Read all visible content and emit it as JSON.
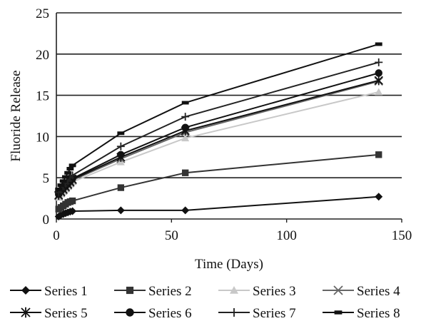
{
  "chart_data": {
    "type": "line",
    "xlabel": "Time (Days)",
    "ylabel": "Fluoride Release",
    "xlim": [
      0,
      150
    ],
    "ylim": [
      0,
      25
    ],
    "xticks": [
      "0",
      "50",
      "100",
      "150"
    ],
    "yticks": [
      "0",
      "5",
      "10",
      "15",
      "20",
      "25"
    ],
    "grid": "horizontal",
    "legend": "bottom",
    "x": [
      1,
      2,
      3,
      4,
      5,
      6,
      7,
      28,
      56,
      140
    ],
    "series": [
      {
        "name": "Series 1",
        "marker": "diamond",
        "color": "#111111",
        "values": [
          0.3,
          0.5,
          0.6,
          0.7,
          0.8,
          0.9,
          0.95,
          1.05,
          1.05,
          2.7
        ]
      },
      {
        "name": "Series 2",
        "marker": "square",
        "color": "#333333",
        "values": [
          1.2,
          1.4,
          1.6,
          1.8,
          2.0,
          2.1,
          2.2,
          3.8,
          5.6,
          7.8
        ]
      },
      {
        "name": "Series 3",
        "marker": "triangle",
        "color": "#c8c8c8",
        "values": [
          2.6,
          3.0,
          3.3,
          3.6,
          3.9,
          4.2,
          4.5,
          6.9,
          9.8,
          15.4
        ]
      },
      {
        "name": "Series 4",
        "marker": "x",
        "color": "#666666",
        "values": [
          2.8,
          3.2,
          3.5,
          3.8,
          4.1,
          4.4,
          4.7,
          7.3,
          10.5,
          16.7
        ]
      },
      {
        "name": "Series 5",
        "marker": "asterisk",
        "color": "#111111",
        "values": [
          2.9,
          3.3,
          3.6,
          3.9,
          4.2,
          4.5,
          4.8,
          7.5,
          10.7,
          16.8
        ]
      },
      {
        "name": "Series 6",
        "marker": "circle",
        "color": "#111111",
        "values": [
          3.0,
          3.4,
          3.7,
          4.0,
          4.3,
          4.6,
          4.9,
          7.8,
          11.1,
          17.7
        ]
      },
      {
        "name": "Series 7",
        "marker": "plus",
        "color": "#222222",
        "values": [
          3.2,
          3.6,
          4.0,
          4.3,
          4.6,
          5.0,
          5.3,
          8.8,
          12.4,
          19.0
        ]
      },
      {
        "name": "Series 8",
        "marker": "dash",
        "color": "#111111",
        "values": [
          3.6,
          4.1,
          4.6,
          5.1,
          5.6,
          6.1,
          6.5,
          10.4,
          14.1,
          21.2
        ]
      }
    ]
  }
}
